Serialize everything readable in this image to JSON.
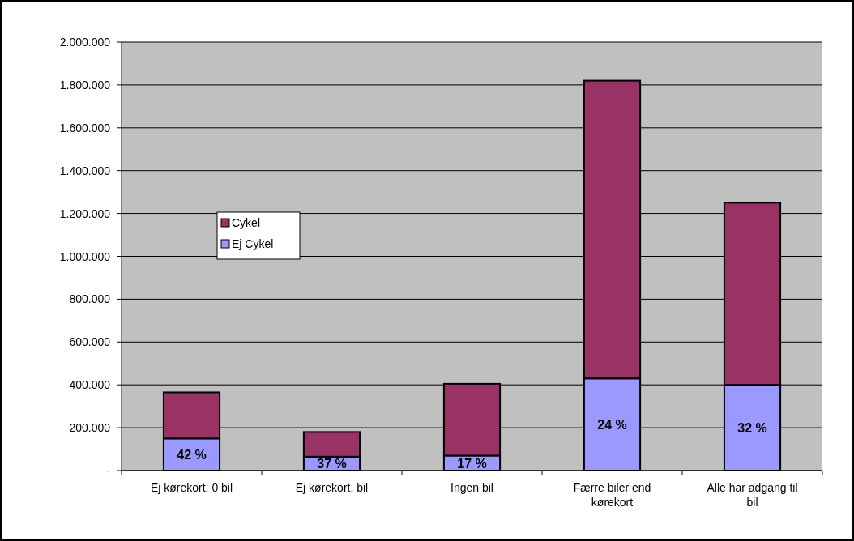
{
  "chart_data": {
    "type": "bar",
    "stacked": true,
    "categories": [
      "Ej kørekort, 0 bil",
      "Ej kørekort, bil",
      "Ingen bil",
      "Færre biler end kørekort",
      "Alle har adgang til bil"
    ],
    "series": [
      {
        "name": "Ej Cykel",
        "color": "#9999ff",
        "values": [
          150000,
          65000,
          70000,
          430000,
          400000
        ]
      },
      {
        "name": "Cykel",
        "color": "#993366",
        "values": [
          215000,
          115000,
          335000,
          1390000,
          850000
        ]
      }
    ],
    "ylim": [
      0,
      2000000
    ],
    "yticks": [
      {
        "value": 0,
        "label": "-"
      },
      {
        "value": 200000,
        "label": "200.000"
      },
      {
        "value": 400000,
        "label": "400.000"
      },
      {
        "value": 600000,
        "label": "600.000"
      },
      {
        "value": 800000,
        "label": "800.000"
      },
      {
        "value": 1000000,
        "label": "1.000.000"
      },
      {
        "value": 1200000,
        "label": "1.200.000"
      },
      {
        "value": 1400000,
        "label": "1.400.000"
      },
      {
        "value": 1600000,
        "label": "1.600.000"
      },
      {
        "value": 1800000,
        "label": "1.800.000"
      },
      {
        "value": 2000000,
        "label": "2.000.000"
      }
    ],
    "annotations": [
      "42 %",
      "37 %",
      "17 %",
      "24 %",
      "32 %"
    ],
    "grid": "y",
    "legend": "left"
  }
}
